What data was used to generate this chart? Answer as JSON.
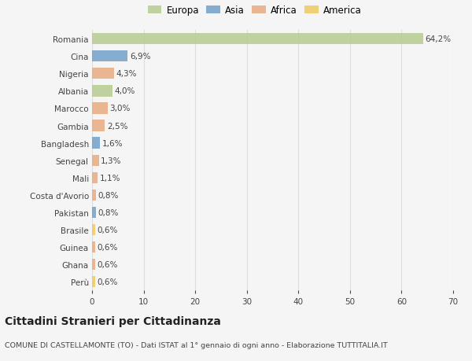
{
  "countries": [
    "Romania",
    "Cina",
    "Nigeria",
    "Albania",
    "Marocco",
    "Gambia",
    "Bangladesh",
    "Senegal",
    "Mali",
    "Costa d'Avorio",
    "Pakistan",
    "Brasile",
    "Guinea",
    "Ghana",
    "Perù"
  ],
  "values": [
    64.2,
    6.9,
    4.3,
    4.0,
    3.0,
    2.5,
    1.6,
    1.3,
    1.1,
    0.8,
    0.8,
    0.6,
    0.6,
    0.6,
    0.6
  ],
  "labels": [
    "64,2%",
    "6,9%",
    "4,3%",
    "4,0%",
    "3,0%",
    "2,5%",
    "1,6%",
    "1,3%",
    "1,1%",
    "0,8%",
    "0,8%",
    "0,6%",
    "0,6%",
    "0,6%",
    "0,6%"
  ],
  "continents": [
    "Europa",
    "Asia",
    "Africa",
    "Europa",
    "Africa",
    "Africa",
    "Asia",
    "Africa",
    "Africa",
    "Africa",
    "Asia",
    "America",
    "Africa",
    "Africa",
    "America"
  ],
  "continent_colors": {
    "Europa": "#b5c98e",
    "Asia": "#6b9ec8",
    "Africa": "#e8a87c",
    "America": "#f0c85a"
  },
  "legend_order": [
    "Europa",
    "Asia",
    "Africa",
    "America"
  ],
  "title": "Cittadini Stranieri per Cittadinanza",
  "subtitle": "COMUNE DI CASTELLAMONTE (TO) - Dati ISTAT al 1° gennaio di ogni anno - Elaborazione TUTTITALIA.IT",
  "xlim": [
    0,
    70
  ],
  "xticks": [
    0,
    10,
    20,
    30,
    40,
    50,
    60,
    70
  ],
  "background_color": "#f5f5f5",
  "grid_color": "#dddddd",
  "text_color": "#444444",
  "label_fontsize": 7.5,
  "tick_fontsize": 7.5,
  "title_fontsize": 10,
  "subtitle_fontsize": 6.8,
  "bar_alpha": 0.82,
  "bar_height": 0.65
}
